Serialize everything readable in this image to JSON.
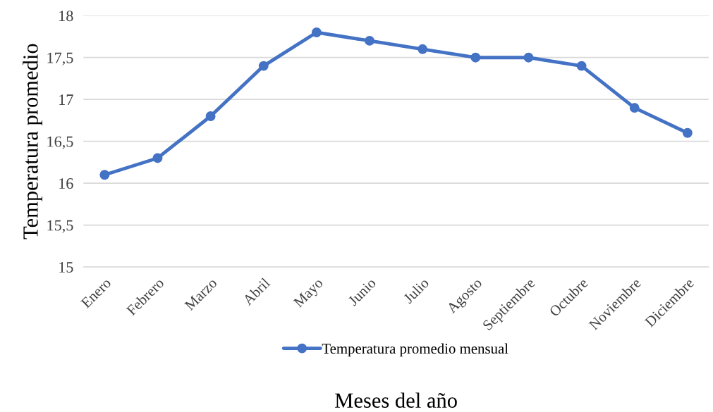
{
  "chart_data": {
    "type": "line",
    "xlabel": "Meses del año",
    "ylabel": "Temperatura promedio",
    "categories": [
      "Enero",
      "Febrero",
      "Marzo",
      "Abril",
      "Mayo",
      "Junio",
      "Julio",
      "Agosto",
      "Septiembre",
      "Octubre",
      "Noviembre",
      "Diciembre"
    ],
    "series": [
      {
        "name": "Temperatura promedio mensual",
        "color": "#4472c4",
        "values": [
          16.1,
          16.3,
          16.8,
          17.4,
          17.8,
          17.7,
          17.6,
          17.5,
          17.5,
          17.4,
          16.9,
          16.6
        ]
      }
    ],
    "ylim": [
      15,
      18
    ],
    "yticks": [
      15,
      {
        "value": 15.5,
        "label": "15,5"
      },
      16,
      {
        "value": 16.5,
        "label": "16,5"
      },
      17,
      {
        "value": 17.5,
        "label": "17,5"
      },
      18
    ],
    "grid": "y",
    "legend": "bottom",
    "marker": "circle",
    "line_style": "solid"
  }
}
